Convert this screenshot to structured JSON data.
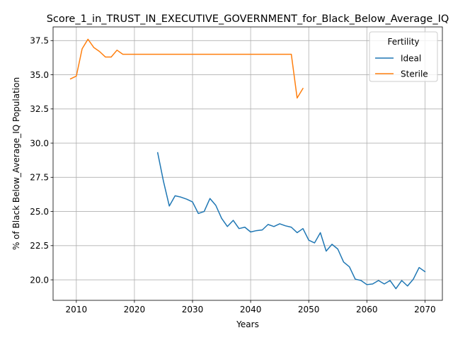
{
  "chart_data": {
    "type": "line",
    "title": "Score_1_in_TRUST_IN_EXECUTIVE_GOVERNMENT_for_Black_Below_Average_IQ",
    "xlabel": "Years",
    "ylabel": "% of Black Below_Average_IQ Population",
    "xlim": [
      2006,
      2073
    ],
    "ylim": [
      18.5,
      38.5
    ],
    "xticks": [
      2010,
      2020,
      2030,
      2040,
      2050,
      2060,
      2070
    ],
    "yticks": [
      20.0,
      22.5,
      25.0,
      27.5,
      30.0,
      32.5,
      35.0,
      37.5
    ],
    "xtick_labels": [
      "2010",
      "2020",
      "2030",
      "2040",
      "2050",
      "2060",
      "2070"
    ],
    "ytick_labels": [
      "20.0",
      "22.5",
      "25.0",
      "27.5",
      "30.0",
      "32.5",
      "35.0",
      "37.5"
    ],
    "grid": true,
    "legend": {
      "title": "Fertility",
      "position": "upper right"
    },
    "series": [
      {
        "name": "Ideal",
        "color": "#1f77b4",
        "x": [
          2024,
          2025,
          2026,
          2027,
          2028,
          2029,
          2030,
          2031,
          2032,
          2033,
          2034,
          2035,
          2036,
          2037,
          2038,
          2039,
          2040,
          2041,
          2042,
          2043,
          2044,
          2045,
          2046,
          2047,
          2048,
          2049,
          2050,
          2051,
          2052,
          2053,
          2054,
          2055,
          2056,
          2057,
          2058,
          2059,
          2060,
          2061,
          2062,
          2063,
          2064,
          2065,
          2066,
          2067,
          2068,
          2069,
          2070
        ],
        "y": [
          29.3,
          27.2,
          25.4,
          26.15,
          26.05,
          25.9,
          25.7,
          24.85,
          25.0,
          25.95,
          25.45,
          24.5,
          23.9,
          24.35,
          23.75,
          23.85,
          23.5,
          23.6,
          23.65,
          24.05,
          23.9,
          24.1,
          23.95,
          23.85,
          23.45,
          23.75,
          22.9,
          22.7,
          23.45,
          22.1,
          22.6,
          22.25,
          21.3,
          20.95,
          20.05,
          19.95,
          19.65,
          19.7,
          19.95,
          19.7,
          19.95,
          19.35,
          19.95,
          19.55,
          20.05,
          20.9,
          20.6
        ]
      },
      {
        "name": "Sterile",
        "color": "#ff7f0e",
        "x": [
          2009,
          2010,
          2011,
          2012,
          2013,
          2014,
          2015,
          2016,
          2017,
          2018,
          2019,
          2020,
          2021,
          2022,
          2023,
          2024,
          2025,
          2026,
          2027,
          2028,
          2029,
          2030,
          2031,
          2032,
          2033,
          2034,
          2035,
          2036,
          2037,
          2038,
          2039,
          2040,
          2041,
          2042,
          2043,
          2044,
          2045,
          2046,
          2047,
          2048,
          2049
        ],
        "y": [
          34.7,
          34.9,
          36.9,
          37.6,
          37.0,
          36.7,
          36.3,
          36.3,
          36.8,
          36.5,
          36.5,
          36.5,
          36.5,
          36.5,
          36.5,
          36.5,
          36.5,
          36.5,
          36.5,
          36.5,
          36.5,
          36.5,
          36.5,
          36.5,
          36.5,
          36.5,
          36.5,
          36.5,
          36.5,
          36.5,
          36.5,
          36.5,
          36.5,
          36.5,
          36.5,
          36.5,
          36.5,
          36.5,
          36.5,
          33.3,
          34.0
        ]
      }
    ]
  }
}
